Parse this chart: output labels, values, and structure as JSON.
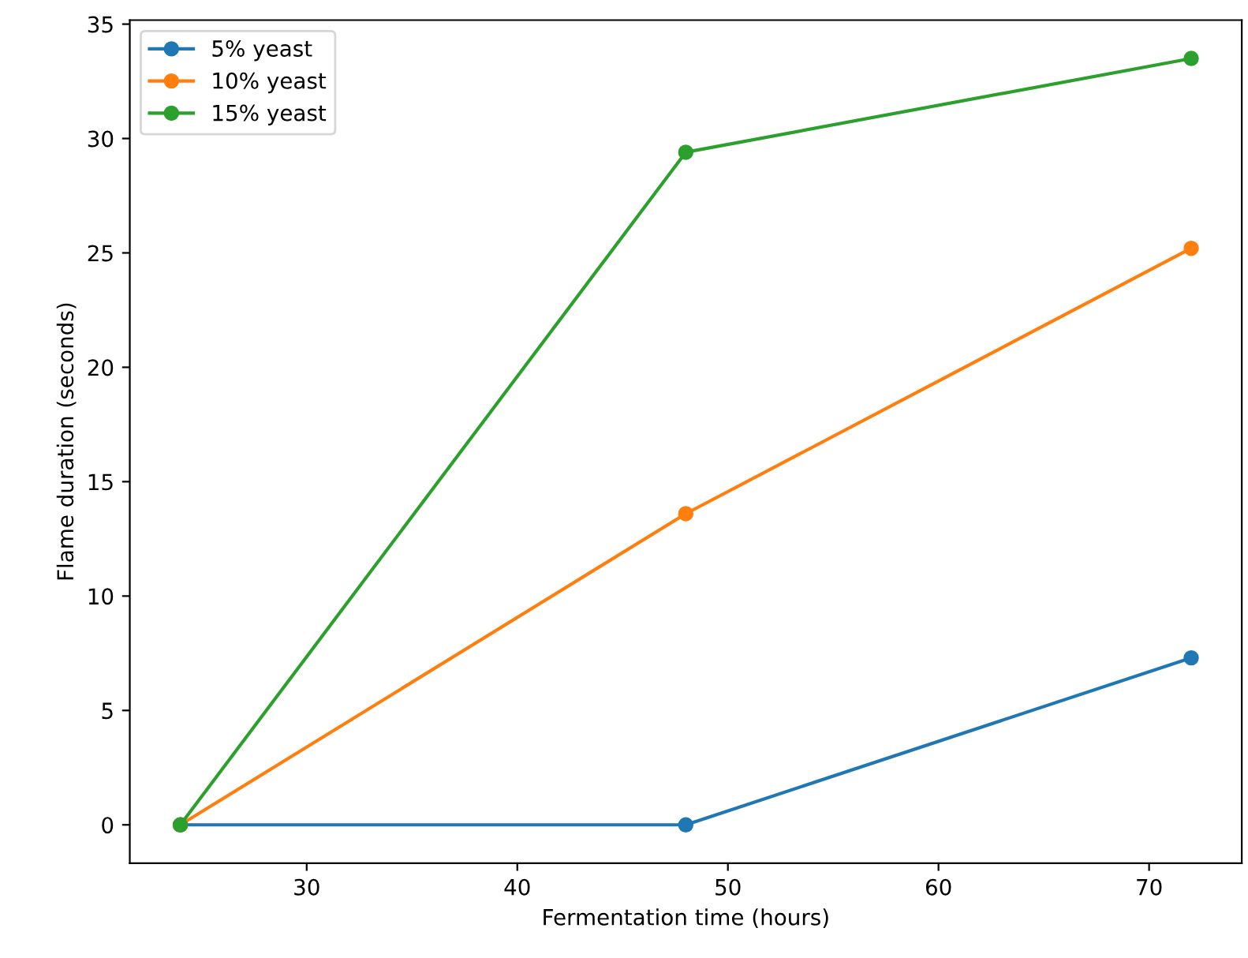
{
  "chart_data": {
    "type": "line",
    "xlabel": "Fermentation time (hours)",
    "ylabel": "Flame duration (seconds)",
    "x": [
      24,
      48,
      72
    ],
    "series": [
      {
        "name": "5% yeast",
        "color": "#1f77b4",
        "values": [
          0,
          0,
          7.3
        ]
      },
      {
        "name": "10% yeast",
        "color": "#ff7f0e",
        "values": [
          0,
          13.6,
          25.2
        ]
      },
      {
        "name": "15% yeast",
        "color": "#2ca02c",
        "values": [
          0,
          29.4,
          33.5
        ]
      }
    ],
    "xlim": [
      21.6,
      74.4
    ],
    "xticks": [
      30,
      40,
      50,
      60,
      70
    ],
    "ylim": [
      -1.675,
      35.175
    ],
    "yticks": [
      0,
      5,
      10,
      15,
      20,
      25,
      30,
      35
    ],
    "grid": false,
    "legend": "top left",
    "marker": "circle",
    "line_style": "solid"
  }
}
